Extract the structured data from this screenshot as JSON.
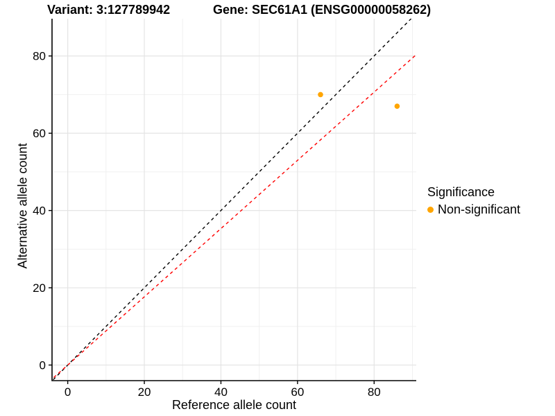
{
  "figure": {
    "title_left": "Variant: 3:127789942",
    "title_right": "Gene: SEC61A1 (ENSG00000058262)"
  },
  "chart_data": {
    "type": "scatter",
    "title": "Variant: 3:127789942   Gene: SEC61A1 (ENSG00000058262)",
    "xlabel": "Reference allele count",
    "ylabel": "Alternative allele count",
    "xlim": [
      -4.1,
      91.0
    ],
    "ylim": [
      -4.04,
      89.64
    ],
    "x_ticks": [
      0,
      20,
      40,
      60,
      80
    ],
    "y_ticks": [
      0,
      20,
      40,
      60,
      80
    ],
    "x_minor_ticks": [
      10,
      30,
      50,
      70,
      90
    ],
    "y_minor_ticks": [
      10,
      30,
      50,
      70
    ],
    "grid": true,
    "points": [
      {
        "x": 66,
        "y": 70,
        "series": "Non-significant"
      },
      {
        "x": 86,
        "y": 67,
        "series": "Non-significant"
      }
    ],
    "lines": [
      {
        "name": "identity-line",
        "slope": 1.0,
        "intercept": 0,
        "color": "#000000",
        "style": "dashed"
      },
      {
        "name": "fit-line",
        "slope": 0.883,
        "intercept": 0,
        "color": "#FF0000",
        "style": "dashed"
      }
    ],
    "legend": {
      "title": "Significance",
      "position": "right",
      "entries": [
        {
          "label": "Non-significant",
          "color": "#FFA500",
          "marker": "circle"
        }
      ]
    },
    "colors": {
      "point": "#FFA500",
      "grid_major": "#E4E4E4",
      "grid_minor": "#F0F0F0",
      "axis": "#000000"
    }
  }
}
